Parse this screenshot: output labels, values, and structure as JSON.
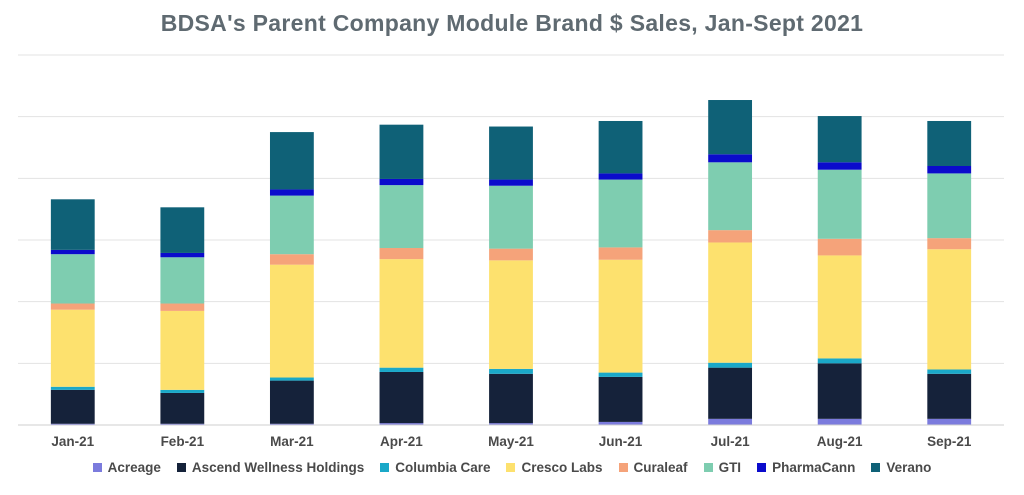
{
  "chart_data": {
    "type": "bar",
    "stacked": true,
    "title": "BDSA's Parent Company Module Brand $ Sales, Jan-Sept 2021",
    "xlabel": "",
    "ylabel": "",
    "ylim": [
      0,
      6
    ],
    "y_tick_labels_visible": false,
    "grid": true,
    "legend_position": "bottom",
    "categories": [
      "Jan-21",
      "Feb-21",
      "Mar-21",
      "Apr-21",
      "May-21",
      "Jun-21",
      "Jul-21",
      "Aug-21",
      "Sep-21"
    ],
    "series": [
      {
        "name": "Acreage",
        "color": "#7b7bdd",
        "values": [
          0.02,
          0.02,
          0.02,
          0.03,
          0.03,
          0.05,
          0.1,
          0.1,
          0.1
        ]
      },
      {
        "name": "Ascend Wellness Holdings",
        "color": "#15223a",
        "values": [
          0.55,
          0.5,
          0.7,
          0.83,
          0.8,
          0.73,
          0.83,
          0.9,
          0.73
        ]
      },
      {
        "name": "Columbia Care",
        "color": "#1aa8c8",
        "values": [
          0.05,
          0.05,
          0.05,
          0.07,
          0.08,
          0.07,
          0.08,
          0.08,
          0.07
        ]
      },
      {
        "name": "Cresco Labs",
        "color": "#fde16e",
        "values": [
          1.25,
          1.28,
          1.83,
          1.76,
          1.76,
          1.83,
          1.95,
          1.67,
          1.95
        ]
      },
      {
        "name": "Curaleaf",
        "color": "#f5a37a",
        "values": [
          0.1,
          0.12,
          0.17,
          0.18,
          0.19,
          0.2,
          0.2,
          0.27,
          0.18
        ]
      },
      {
        "name": "GTI",
        "color": "#7ecdb0",
        "values": [
          0.8,
          0.75,
          0.95,
          1.02,
          1.02,
          1.1,
          1.1,
          1.12,
          1.05
        ]
      },
      {
        "name": "PharmaCann",
        "color": "#0b0bcc",
        "values": [
          0.07,
          0.07,
          0.1,
          0.1,
          0.1,
          0.1,
          0.13,
          0.12,
          0.12
        ]
      },
      {
        "name": "Verano",
        "color": "#0f6177",
        "values": [
          0.82,
          0.74,
          0.93,
          0.88,
          0.86,
          0.85,
          0.88,
          0.75,
          0.73
        ]
      }
    ]
  }
}
